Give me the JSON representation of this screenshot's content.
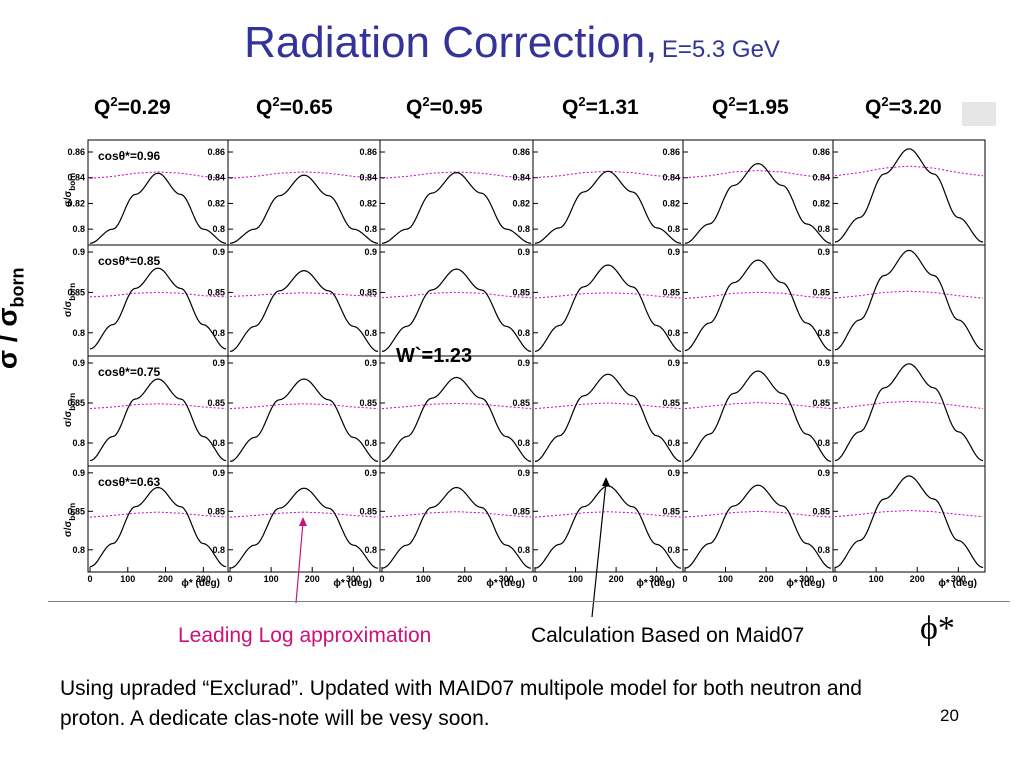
{
  "title": {
    "main": "Radiation Correction,",
    "sub": "E=5.3 GeV"
  },
  "q2_prefix": "Q",
  "q2_values": [
    "=0.29",
    "=0.65",
    "=0.95",
    "=1.31",
    "=1.95",
    "=3.20"
  ],
  "y_axis_label": {
    "main": "σ / σ",
    "sub": "born"
  },
  "panel_y_label": "σ/σ",
  "panel_y_sub": "born",
  "row_labels": [
    "cosθ*=0.96",
    "cosθ*=0.85",
    "cosθ*=0.75",
    "cosθ*=0.63"
  ],
  "w_label": "W`=1.23",
  "x_axis": {
    "label": "ϕ* (deg)",
    "ticks": [
      "0",
      "100",
      "200",
      "300"
    ]
  },
  "phi_label": "ϕ*",
  "annotations": {
    "leading_log": "Leading Log approximation",
    "calculation": "Calculation Based on Maid07"
  },
  "note": "Using upraded “Exclurad”. Updated with MAID07 multipole model for both neutron and proton. A dedicate clas-note will be vesy soon.",
  "page_number": "20",
  "colors": {
    "title": "#333399",
    "leading_log": "#cc1177",
    "black_curve": "#000000",
    "magenta_curve": "#cc00cc"
  },
  "chart_data": {
    "type": "line",
    "x": [
      0,
      60,
      120,
      180,
      240,
      300,
      360
    ],
    "xlabel": "ϕ* (deg)",
    "ylabel": "σ/σborn",
    "rows": [
      {
        "label": "cosθ*=0.96",
        "y_ticks": [
          "0.86",
          "0.84",
          "0.82",
          "0.8"
        ],
        "ylim": [
          0.79,
          0.867
        ],
        "panels": [
          {
            "q2": "0.29",
            "maid07": [
              0.789,
              0.8,
              0.827,
              0.8435,
              0.827,
              0.8,
              0.789
            ],
            "leading_log": [
              0.8395,
              0.841,
              0.8435,
              0.8445,
              0.8435,
              0.841,
              0.8395
            ]
          },
          {
            "q2": "0.65",
            "maid07": [
              0.789,
              0.8,
              0.826,
              0.842,
              0.826,
              0.8,
              0.789
            ],
            "leading_log": [
              0.8395,
              0.841,
              0.8435,
              0.8445,
              0.8435,
              0.841,
              0.8395
            ]
          },
          {
            "q2": "0.95",
            "maid07": [
              0.789,
              0.8,
              0.828,
              0.844,
              0.828,
              0.8,
              0.789
            ],
            "leading_log": [
              0.8395,
              0.841,
              0.8435,
              0.8445,
              0.8435,
              0.841,
              0.8395
            ]
          },
          {
            "q2": "1.31",
            "maid07": [
              0.789,
              0.801,
              0.829,
              0.845,
              0.829,
              0.801,
              0.789
            ],
            "leading_log": [
              0.84,
              0.8415,
              0.844,
              0.845,
              0.844,
              0.8415,
              0.84
            ]
          },
          {
            "q2": "1.95",
            "maid07": [
              0.789,
              0.804,
              0.834,
              0.851,
              0.834,
              0.804,
              0.789
            ],
            "leading_log": [
              0.84,
              0.8415,
              0.8445,
              0.8455,
              0.8445,
              0.8415,
              0.84
            ]
          },
          {
            "q2": "3.20",
            "maid07": [
              0.79,
              0.809,
              0.843,
              0.8625,
              0.843,
              0.809,
              0.79
            ],
            "leading_log": [
              0.8415,
              0.844,
              0.8475,
              0.849,
              0.8475,
              0.844,
              0.8415
            ]
          }
        ]
      },
      {
        "label": "cosθ*=0.85",
        "y_ticks": [
          "0.9",
          "0.85",
          "0.8"
        ],
        "ylim": [
          0.775,
          0.905
        ],
        "panels": [
          {
            "q2": "0.29",
            "maid07": [
              0.78,
              0.81,
              0.855,
              0.88,
              0.855,
              0.81,
              0.78
            ],
            "leading_log": [
              0.8445,
              0.846,
              0.849,
              0.85,
              0.849,
              0.846,
              0.8445
            ]
          },
          {
            "q2": "0.65",
            "maid07": [
              0.777,
              0.808,
              0.852,
              0.877,
              0.852,
              0.808,
              0.777
            ],
            "leading_log": [
              0.845,
              0.8465,
              0.8485,
              0.8495,
              0.8485,
              0.8465,
              0.845
            ]
          },
          {
            "q2": "0.95",
            "maid07": [
              0.777,
              0.808,
              0.853,
              0.879,
              0.853,
              0.808,
              0.777
            ],
            "leading_log": [
              0.8435,
              0.8455,
              0.849,
              0.85,
              0.849,
              0.8455,
              0.8435
            ]
          },
          {
            "q2": "1.31",
            "maid07": [
              0.777,
              0.809,
              0.857,
              0.884,
              0.857,
              0.809,
              0.777
            ],
            "leading_log": [
              0.843,
              0.8455,
              0.8485,
              0.8495,
              0.8485,
              0.8455,
              0.843
            ]
          },
          {
            "q2": "1.95",
            "maid07": [
              0.778,
              0.812,
              0.862,
              0.89,
              0.862,
              0.812,
              0.778
            ],
            "leading_log": [
              0.8425,
              0.845,
              0.849,
              0.85,
              0.849,
              0.845,
              0.8425
            ]
          },
          {
            "q2": "3.20",
            "maid07": [
              0.779,
              0.816,
              0.871,
              0.902,
              0.871,
              0.816,
              0.779
            ],
            "leading_log": [
              0.843,
              0.846,
              0.85,
              0.8515,
              0.85,
              0.846,
              0.843
            ]
          }
        ]
      },
      {
        "label": "cosθ*=0.75",
        "y_ticks": [
          "0.9",
          "0.85",
          "0.8"
        ],
        "ylim": [
          0.775,
          0.905
        ],
        "panels": [
          {
            "q2": "0.29",
            "maid07": [
              0.778,
              0.808,
              0.855,
              0.88,
              0.855,
              0.808,
              0.778
            ],
            "leading_log": [
              0.843,
              0.845,
              0.848,
              0.849,
              0.848,
              0.845,
              0.843
            ]
          },
          {
            "q2": "0.65",
            "maid07": [
              0.777,
              0.807,
              0.854,
              0.88,
              0.854,
              0.807,
              0.777
            ],
            "leading_log": [
              0.843,
              0.845,
              0.848,
              0.849,
              0.848,
              0.845,
              0.843
            ]
          },
          {
            "q2": "0.95",
            "maid07": [
              0.777,
              0.808,
              0.856,
              0.882,
              0.856,
              0.808,
              0.777
            ],
            "leading_log": [
              0.843,
              0.8455,
              0.8485,
              0.8495,
              0.8485,
              0.8455,
              0.843
            ]
          },
          {
            "q2": "1.31",
            "maid07": [
              0.777,
              0.809,
              0.859,
              0.886,
              0.859,
              0.809,
              0.777
            ],
            "leading_log": [
              0.843,
              0.8455,
              0.8485,
              0.85,
              0.8485,
              0.8455,
              0.843
            ]
          },
          {
            "q2": "1.95",
            "maid07": [
              0.777,
              0.811,
              0.862,
              0.89,
              0.862,
              0.811,
              0.777
            ],
            "leading_log": [
              0.843,
              0.846,
              0.849,
              0.8505,
              0.849,
              0.846,
              0.843
            ]
          },
          {
            "q2": "3.20",
            "maid07": [
              0.778,
              0.814,
              0.869,
              0.899,
              0.869,
              0.814,
              0.778
            ],
            "leading_log": [
              0.843,
              0.8465,
              0.8505,
              0.852,
              0.8505,
              0.8465,
              0.843
            ]
          }
        ]
      },
      {
        "label": "cosθ*=0.63",
        "y_ticks": [
          "0.9",
          "0.85",
          "0.8"
        ],
        "ylim": [
          0.775,
          0.905
        ],
        "panels": [
          {
            "q2": "0.29",
            "maid07": [
              0.778,
              0.808,
              0.856,
              0.881,
              0.856,
              0.808,
              0.778
            ],
            "leading_log": [
              0.8425,
              0.8445,
              0.8475,
              0.849,
              0.8475,
              0.8445,
              0.8425
            ]
          },
          {
            "q2": "0.65",
            "maid07": [
              0.776,
              0.806,
              0.854,
              0.88,
              0.854,
              0.806,
              0.776
            ],
            "leading_log": [
              0.8425,
              0.8445,
              0.8475,
              0.849,
              0.8475,
              0.8445,
              0.8425
            ]
          },
          {
            "q2": "0.95",
            "maid07": [
              0.776,
              0.806,
              0.855,
              0.881,
              0.855,
              0.806,
              0.776
            ],
            "leading_log": [
              0.8425,
              0.845,
              0.848,
              0.8495,
              0.848,
              0.845,
              0.8425
            ]
          },
          {
            "q2": "1.31",
            "maid07": [
              0.776,
              0.807,
              0.856,
              0.883,
              0.856,
              0.807,
              0.776
            ],
            "leading_log": [
              0.8425,
              0.845,
              0.848,
              0.8495,
              0.848,
              0.845,
              0.8425
            ]
          },
          {
            "q2": "1.95",
            "maid07": [
              0.776,
              0.808,
              0.857,
              0.884,
              0.857,
              0.808,
              0.776
            ],
            "leading_log": [
              0.8425,
              0.845,
              0.8485,
              0.85,
              0.8485,
              0.845,
              0.8425
            ]
          },
          {
            "q2": "3.20",
            "maid07": [
              0.777,
              0.812,
              0.866,
              0.896,
              0.866,
              0.812,
              0.777
            ],
            "leading_log": [
              0.843,
              0.846,
              0.8495,
              0.851,
              0.8495,
              0.846,
              0.843
            ]
          }
        ]
      }
    ]
  }
}
